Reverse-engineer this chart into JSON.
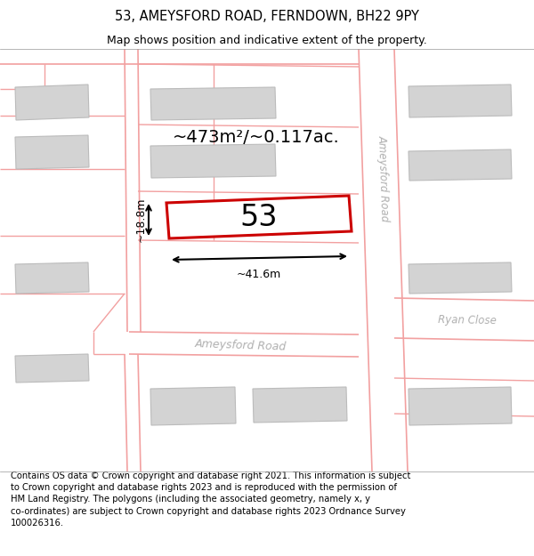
{
  "title": "53, AMEYSFORD ROAD, FERNDOWN, BH22 9PY",
  "subtitle": "Map shows position and indicative extent of the property.",
  "footer": "Contains OS data © Crown copyright and database right 2021. This information is subject\nto Crown copyright and database rights 2023 and is reproduced with the permission of\nHM Land Registry. The polygons (including the associated geometry, namely x, y\nco-ordinates) are subject to Crown copyright and database rights 2023 Ordnance Survey\n100026316.",
  "map_bg": "#f7f6f4",
  "area_label": "~473m²/~0.117ac.",
  "width_label": "~41.6m",
  "height_label": "~18.8m",
  "property_number": "53",
  "road_ameysford_vertical": "Ameysford Road",
  "road_ameysford_horiz": "Ameysford Road",
  "road_ryan": "Ryan Close",
  "pink": "#f2a0a0",
  "red": "#cc0000",
  "gray": "#cccccc",
  "title_fontsize": 10.5,
  "subtitle_fontsize": 9,
  "footer_fontsize": 7.2,
  "area_fontsize": 14,
  "number_fontsize": 24,
  "dim_fontsize": 9
}
